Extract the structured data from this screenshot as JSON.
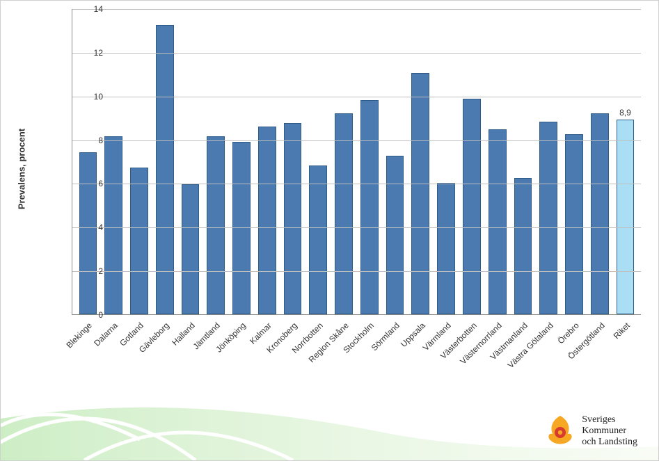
{
  "chart": {
    "type": "bar",
    "ylabel": "Prevalens, procent",
    "label_fontsize": 13,
    "ylim": [
      0,
      14
    ],
    "ytick_step": 2,
    "yticks": [
      0,
      2,
      4,
      6,
      8,
      10,
      12,
      14
    ],
    "grid_color": "#bfbfbf",
    "axis_color": "#888888",
    "background_color": "#ffffff",
    "bar_width": 0.7,
    "categories": [
      "Blekinge",
      "Dalarna",
      "Gotland",
      "Gävleborg",
      "Halland",
      "Jämtland",
      "Jönköping",
      "Kalmar",
      "Kronoberg",
      "Norrbotten",
      "Region Skåne",
      "Stockholm",
      "Sörmland",
      "Uppsala",
      "Värmland",
      "Västerbotten",
      "Västernorrland",
      "Västmanland",
      "Västra Götaland",
      "Örebro",
      "Östergötland",
      "Riket"
    ],
    "values": [
      7.4,
      8.15,
      6.7,
      13.25,
      5.95,
      8.15,
      7.9,
      8.6,
      8.75,
      6.8,
      9.2,
      9.8,
      7.25,
      11.05,
      6.0,
      9.85,
      8.45,
      6.25,
      8.8,
      8.25,
      9.2,
      8.9
    ],
    "bar_colors": [
      "#4a7ab0",
      "#4a7ab0",
      "#4a7ab0",
      "#4a7ab0",
      "#4a7ab0",
      "#4a7ab0",
      "#4a7ab0",
      "#4a7ab0",
      "#4a7ab0",
      "#4a7ab0",
      "#4a7ab0",
      "#4a7ab0",
      "#4a7ab0",
      "#4a7ab0",
      "#4a7ab0",
      "#4a7ab0",
      "#4a7ab0",
      "#4a7ab0",
      "#4a7ab0",
      "#4a7ab0",
      "#4a7ab0",
      "#a9def5"
    ],
    "bar_border_color": "#2f5b89",
    "value_labels": {
      "21": "8,9"
    },
    "xlabel_fontsize": 12,
    "xlabel_rotation": -45
  },
  "footer": {
    "logo_colors": {
      "outer": "#f7a823",
      "inner": "#d73a2f"
    },
    "org_line1": "Sveriges",
    "org_line2": "Kommuner",
    "org_line3": "och Landsting",
    "bg_color1": "#cdeec5",
    "bg_color2": "#e8f5df",
    "arc_color": "#ffffff"
  }
}
